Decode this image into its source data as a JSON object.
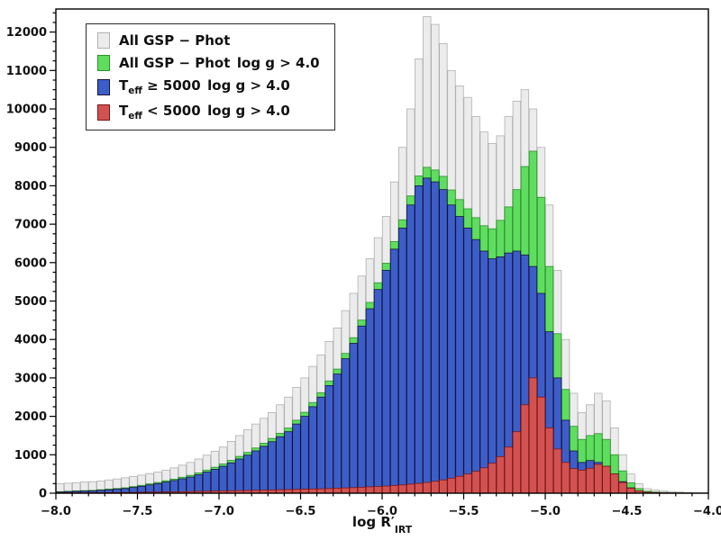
{
  "figure": {
    "background": "#ffffff",
    "axis_color": "#000000",
    "tick_label_color": "#111111"
  },
  "chart_data": {
    "type": "bar",
    "mode": "overlaid-histogram",
    "title": "",
    "xlabel": "log R′_{IRT}",
    "ylabel": "",
    "xlim": [
      -8.0,
      -4.0
    ],
    "ylim": [
      0,
      12600
    ],
    "x_ticks": [
      -8.0,
      -7.5,
      -7.0,
      -6.5,
      -6.0,
      -5.5,
      -5.0,
      -4.5,
      -4.0
    ],
    "y_ticks": [
      0,
      1000,
      2000,
      3000,
      4000,
      5000,
      6000,
      7000,
      8000,
      9000,
      10000,
      11000,
      12000
    ],
    "x_minor_step": 0.1,
    "y_minor_step": 250,
    "grid": false,
    "legend_position": "upper-left",
    "bins": {
      "start": -8.0,
      "width": 0.05,
      "count": 80
    },
    "series": [
      {
        "name": "All GSP − Phot",
        "color": "#ececec",
        "edge": "#b0b0b0",
        "values": [
          250,
          260,
          275,
          290,
          300,
          320,
          345,
          370,
          400,
          435,
          470,
          510,
          550,
          600,
          660,
          730,
          800,
          890,
          990,
          1090,
          1200,
          1350,
          1500,
          1650,
          1800,
          1950,
          2100,
          2300,
          2500,
          2750,
          3000,
          3300,
          3600,
          3950,
          4300,
          4750,
          5200,
          5650,
          6100,
          6650,
          7200,
          8100,
          9000,
          10000,
          11300,
          12400,
          12200,
          11700,
          11000,
          10600,
          10300,
          9800,
          9400,
          9100,
          9300,
          9800,
          10200,
          10500,
          10000,
          9000,
          7500,
          5800,
          4000,
          2600,
          2100,
          2300,
          2600,
          2400,
          1700,
          1000,
          500,
          250,
          120,
          80,
          60,
          45,
          30,
          20,
          15,
          10
        ]
      },
      {
        "name": "All GSP − Phot log g > 4.0",
        "color": "#5fdd5f",
        "edge": "#2e8f2e",
        "values": [
          40,
          50,
          62,
          67,
          75,
          90,
          108,
          123,
          140,
          172,
          205,
          243,
          280,
          323,
          366,
          415,
          464,
          528,
          602,
          676,
          760,
          854,
          958,
          1062,
          1176,
          1300,
          1425,
          1560,
          1695,
          1900,
          2105,
          2360,
          2615,
          2922,
          3230,
          3638,
          4046,
          4505,
          4965,
          5475,
          5985,
          6550,
          7115,
          7735,
          8255,
          8480,
          8410,
          8245,
          7890,
          7640,
          7400,
          7170,
          6960,
          6880,
          7100,
          7450,
          7900,
          8500,
          8900,
          7700,
          5900,
          4150,
          2700,
          1740,
          1400,
          1500,
          1550,
          1400,
          1000,
          580,
          270,
          120,
          50,
          30,
          20,
          12,
          8,
          6,
          4,
          2
        ]
      },
      {
        "name": "T_{eff} ≥ 5000 log g > 4.0",
        "color": "#3d5ec9",
        "edge": "#14143c",
        "values": [
          30,
          40,
          50,
          55,
          60,
          75,
          90,
          105,
          120,
          150,
          180,
          215,
          250,
          290,
          330,
          375,
          420,
          480,
          550,
          620,
          700,
          790,
          890,
          990,
          1100,
          1220,
          1340,
          1470,
          1600,
          1800,
          2000,
          2250,
          2500,
          2800,
          3100,
          3500,
          3900,
          4350,
          4800,
          5300,
          5800,
          6350,
          6900,
          7500,
          8000,
          8200,
          8100,
          7900,
          7500,
          7200,
          6900,
          6600,
          6300,
          6100,
          6150,
          6250,
          6300,
          6200,
          5900,
          5200,
          4200,
          3000,
          1900,
          1100,
          800,
          850,
          800,
          700,
          500,
          300,
          140,
          60,
          25,
          15,
          10,
          6,
          4,
          3,
          2,
          1
        ]
      },
      {
        "name": "T_{eff} < 5000 log g > 4.0",
        "color": "#d25252",
        "edge": "#7c1616",
        "values": [
          10,
          10,
          12,
          12,
          15,
          15,
          18,
          18,
          20,
          22,
          25,
          28,
          30,
          33,
          36,
          40,
          44,
          48,
          52,
          56,
          60,
          64,
          68,
          72,
          76,
          80,
          85,
          90,
          95,
          100,
          105,
          110,
          115,
          122,
          130,
          138,
          146,
          155,
          165,
          175,
          185,
          200,
          215,
          235,
          255,
          280,
          310,
          345,
          390,
          440,
          500,
          570,
          660,
          780,
          950,
          1200,
          1600,
          2300,
          3000,
          2500,
          1700,
          1150,
          800,
          640,
          600,
          650,
          750,
          700,
          500,
          280,
          130,
          60,
          25,
          15,
          10,
          6,
          4,
          3,
          2,
          1
        ]
      }
    ]
  }
}
